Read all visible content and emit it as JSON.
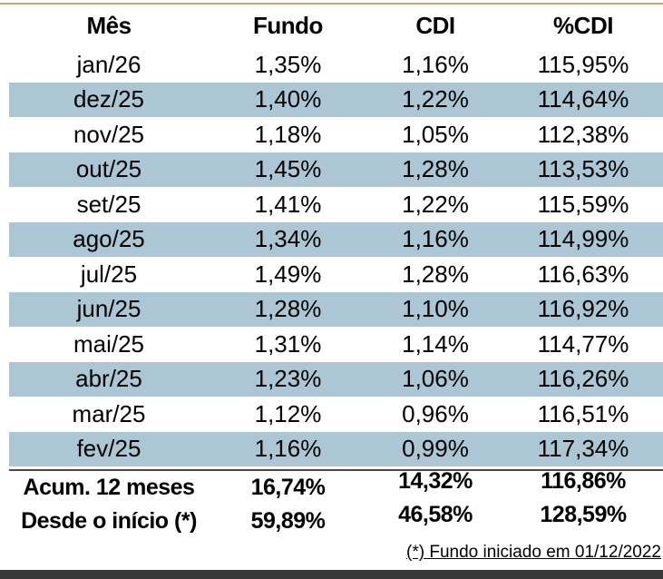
{
  "colors": {
    "stripe": "#ACC6D6",
    "top_rule": "#C8A46E",
    "summary_rule": "#4A4A4A",
    "bottom_bar": "#383838"
  },
  "chart_data": {
    "type": "table",
    "columns": [
      "Mês",
      "Fundo",
      "CDI",
      "%CDI"
    ],
    "rows": [
      [
        "jan/26",
        "1,35%",
        "1,16%",
        "115,95%"
      ],
      [
        "dez/25",
        "1,40%",
        "1,22%",
        "114,64%"
      ],
      [
        "nov/25",
        "1,18%",
        "1,05%",
        "112,38%"
      ],
      [
        "out/25",
        "1,45%",
        "1,28%",
        "113,53%"
      ],
      [
        "set/25",
        "1,41%",
        "1,22%",
        "115,59%"
      ],
      [
        "ago/25",
        "1,34%",
        "1,16%",
        "114,99%"
      ],
      [
        "jul/25",
        "1,49%",
        "1,28%",
        "116,63%"
      ],
      [
        "jun/25",
        "1,28%",
        "1,10%",
        "116,92%"
      ],
      [
        "mai/25",
        "1,31%",
        "1,14%",
        "114,77%"
      ],
      [
        "abr/25",
        "1,23%",
        "1,06%",
        "116,26%"
      ],
      [
        "mar/25",
        "1,12%",
        "0,96%",
        "116,51%"
      ],
      [
        "fev/25",
        "1,16%",
        "0,99%",
        "117,34%"
      ]
    ],
    "summary": [
      {
        "label": "Acum. 12 meses",
        "fundo": "16,74%",
        "cdi": "14,32%",
        "pcdi": "116,86%"
      },
      {
        "label": "Desde o início (*)",
        "fundo": "59,89%",
        "cdi": "46,58%",
        "pcdi": "128,59%"
      }
    ],
    "footnote": "(*) Fundo iniciado em 01/12/2022",
    "layout": {
      "striped_rows": "even rows (dez/25, out/25, ago/25, jun/25, abr/25, fev/25)",
      "grid": "off"
    }
  }
}
